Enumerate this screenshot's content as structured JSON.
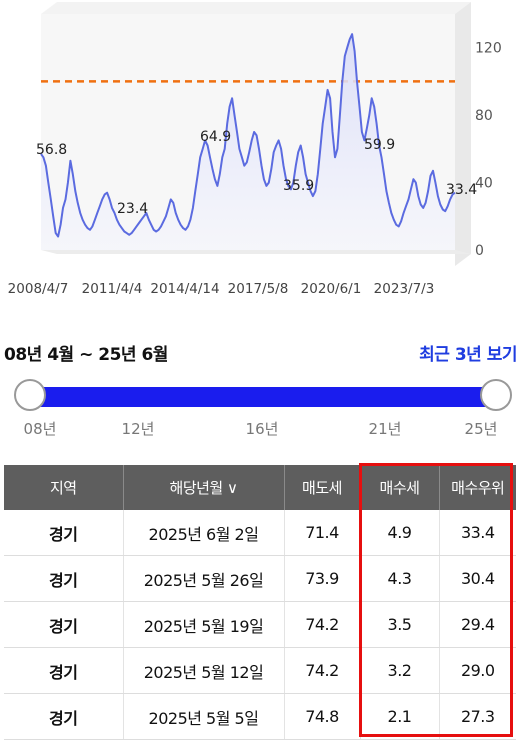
{
  "chart_data": {
    "type": "area",
    "x_tick_labels": [
      "2008/4/7",
      "2011/4/4",
      "2014/4/14",
      "2017/5/8",
      "2020/6/1",
      "2023/7/3"
    ],
    "y_ticks": [
      "0",
      "40",
      "80",
      "120"
    ],
    "ylim": [
      0,
      140
    ],
    "reference_line": 100,
    "reference_color": "#f07010",
    "line_color": "#5b6be0",
    "annotations": [
      "56.8",
      "23.4",
      "64.9",
      "35.9",
      "59.9",
      "33.4"
    ],
    "series": [
      {
        "values": [
          57,
          55,
          50,
          40,
          30,
          20,
          10,
          8,
          15,
          25,
          30,
          40,
          53,
          45,
          35,
          28,
          22,
          18,
          15,
          13,
          12,
          14,
          18,
          22,
          26,
          30,
          33,
          34,
          30,
          25,
          22,
          18,
          15,
          13,
          11,
          10,
          9,
          10,
          12,
          14,
          16,
          18,
          20,
          22,
          18,
          15,
          12,
          11,
          12,
          14,
          17,
          20,
          25,
          30,
          28,
          22,
          18,
          15,
          13,
          12,
          14,
          18,
          25,
          35,
          45,
          55,
          60,
          65,
          62,
          55,
          48,
          42,
          38,
          45,
          55,
          60,
          75,
          85,
          90,
          80,
          70,
          60,
          55,
          50,
          52,
          58,
          65,
          70,
          68,
          60,
          50,
          42,
          38,
          40,
          48,
          58,
          62,
          65,
          60,
          50,
          42,
          38,
          36,
          40,
          50,
          58,
          62,
          55,
          45,
          40,
          35,
          32,
          35,
          45,
          60,
          75,
          85,
          95,
          90,
          70,
          55,
          60,
          80,
          100,
          115,
          120,
          125,
          128,
          118,
          100,
          85,
          70,
          65,
          72,
          80,
          90,
          85,
          75,
          62,
          55,
          45,
          35,
          28,
          22,
          18,
          15,
          14,
          17,
          22,
          26,
          30,
          36,
          42,
          40,
          32,
          27,
          25,
          28,
          35,
          44,
          47,
          40,
          32,
          27,
          24,
          23,
          26,
          30,
          33,
          34
        ]
      }
    ]
  },
  "range": {
    "title": "08년 4월 ~ 25년 6월",
    "recent_link": "최근 3년 보기",
    "start": "08년",
    "end": "25년",
    "ticks": [
      "08년",
      "12년",
      "16년",
      "21년",
      "25년"
    ]
  },
  "table": {
    "headers": [
      "지역",
      "해당년월 ∨",
      "매도세",
      "매수세",
      "매수우위"
    ],
    "rows": [
      [
        "경기",
        "2025년 6월 2일",
        "71.4",
        "4.9",
        "33.4"
      ],
      [
        "경기",
        "2025년 5월 26일",
        "73.9",
        "4.3",
        "30.4"
      ],
      [
        "경기",
        "2025년 5월 19일",
        "74.2",
        "3.5",
        "29.4"
      ],
      [
        "경기",
        "2025년 5월 12일",
        "74.2",
        "3.2",
        "29.0"
      ],
      [
        "경기",
        "2025년 5월 5일",
        "74.8",
        "2.1",
        "27.3"
      ]
    ],
    "highlight_color": "#e60f0f"
  }
}
